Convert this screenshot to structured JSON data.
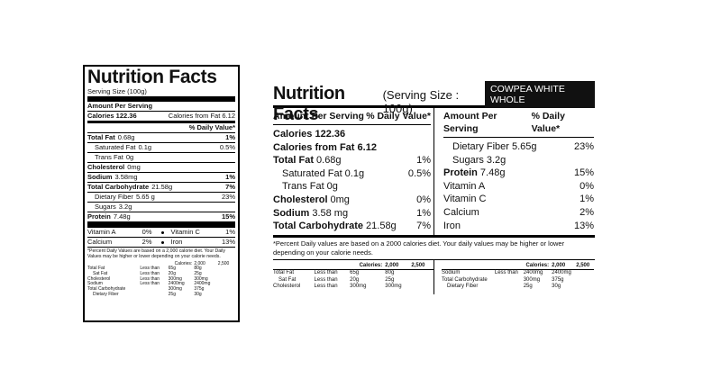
{
  "left_label": {
    "title": "Nutrition Facts",
    "serving_size": "Serving Size (100g)",
    "amount_per_serving": "Amount Per Serving",
    "calories": "Calories 122.36",
    "calories_from_fat": "Calories from Fat 6.12",
    "daily_value_header": "% Daily Value*",
    "nutrients": [
      {
        "name": "Total Fat",
        "amount": "0.68g",
        "dv": "1%",
        "bold": true
      },
      {
        "name": "Saturated Fat",
        "amount": "0.1g",
        "dv": "0.5%",
        "indent": true
      },
      {
        "name": "Trans Fat",
        "amount": "0g",
        "indent": true
      },
      {
        "name": "Cholesterol",
        "amount": "0mg",
        "bold": true
      },
      {
        "name": "Sodium",
        "amount": "3.58mg",
        "dv": "1%",
        "bold": true
      },
      {
        "name": "Total Carbohydrate",
        "amount": "21.58g",
        "dv": "7%",
        "bold": true
      },
      {
        "name": "Dietary Fiber",
        "amount": "5.65 g",
        "dv": "23%",
        "indent": true
      },
      {
        "name": "Sugars",
        "amount": "3.2g",
        "indent": true
      },
      {
        "name": "Protein",
        "amount": "7.48g",
        "dv": "15%",
        "bold": true
      }
    ],
    "vitamins": [
      [
        {
          "name": "Vitamin A",
          "dv": "0%"
        },
        {
          "name": "Vitamin C",
          "dv": "1%"
        }
      ],
      [
        {
          "name": "Calcium",
          "dv": "2%"
        },
        {
          "name": "Iron",
          "dv": "13%"
        }
      ]
    ],
    "footnote": "*Percent Daily Values are based on a 2,000 calorie diet. Your Daily Values may be higher or lower depending on your calorie needs.",
    "reference_table": {
      "header": [
        "Calories:",
        "2,000",
        "2,500"
      ],
      "rows": [
        [
          "Total Fat",
          "Less than",
          "65g",
          "80g"
        ],
        [
          "Sat Fat",
          "Less than",
          "20g",
          "25g"
        ],
        [
          "Cholesterol",
          "Less than",
          "300mg",
          "300mg"
        ],
        [
          "Sodium",
          "Less than",
          "2400mg",
          "2400mg"
        ],
        [
          "Total Carbohydrate",
          null,
          "300mg",
          "375g"
        ],
        [
          "Dietary Fiber",
          null,
          "25g",
          "30g"
        ]
      ]
    }
  },
  "right_label": {
    "title": "Nutrition Facts",
    "serving_size": "(Serving Size : 100g)",
    "product": "COWPEA WHITE WHOLE",
    "columns": [
      {
        "header_amount": "Amount Per Serving",
        "header_dv": "% Daily Value*",
        "rows": [
          {
            "name": "Calories 122.36",
            "bold": true
          },
          {
            "name": "Calories from Fat 6.12",
            "bold": true
          },
          {
            "name": "Total Fat",
            "amount": "0.68g",
            "dv": "1%",
            "bold": true
          },
          {
            "name": "Saturated Fat",
            "amount": "0.1g",
            "dv": "0.5%",
            "indent": true
          },
          {
            "name": "Trans Fat",
            "amount": "0g",
            "indent": true
          },
          {
            "name": "Cholesterol",
            "amount": "0mg",
            "dv": "0%",
            "bold": true
          },
          {
            "name": "Sodium",
            "amount": "3.58 mg",
            "dv": "1%",
            "bold": true
          },
          {
            "name": "Total Carbohydrate",
            "amount": "21.58g",
            "dv": "7%",
            "bold": true
          }
        ]
      },
      {
        "header_amount": "Amount Per Serving",
        "header_dv": "% Daily Value*",
        "rows": [
          {
            "name": "Dietary Fiber",
            "amount": "5.65g",
            "dv": "23%",
            "indent": true
          },
          {
            "name": "Sugars",
            "amount": "3.2g",
            "indent": true
          },
          {
            "name": "Protein",
            "amount": "7.48g",
            "dv": "15%",
            "bold": true
          },
          {
            "name": "Vitamin A",
            "dv": "0%"
          },
          {
            "name": "Vitamin C",
            "dv": "1%"
          },
          {
            "name": "Calcium",
            "dv": "2%"
          },
          {
            "name": "Iron",
            "dv": "13%"
          }
        ]
      }
    ],
    "footnote": "*Percent Daily values are based on a 2000 calories diet. Your daily values may be higher or lower depending on your calorie needs.",
    "reference_tables": [
      {
        "header": [
          "Calories:",
          "2,000",
          "2,500"
        ],
        "rows": [
          [
            "Total Fat",
            "Less than",
            "65g",
            "80g"
          ],
          [
            "Sat Fat",
            "Less than",
            "20g",
            "25g"
          ],
          [
            "Cholesterol",
            "Less than",
            "300mg",
            "300mg"
          ]
        ]
      },
      {
        "header": [
          "Calories:",
          "2,000",
          "2,500"
        ],
        "rows": [
          [
            "Sodium",
            "Less than",
            "2400mg",
            "2400mg"
          ],
          [
            "Total Carbohydrate",
            null,
            "300mg",
            "375g"
          ],
          [
            "Dietary Fiber",
            null,
            "25g",
            "30g"
          ]
        ]
      }
    ]
  }
}
